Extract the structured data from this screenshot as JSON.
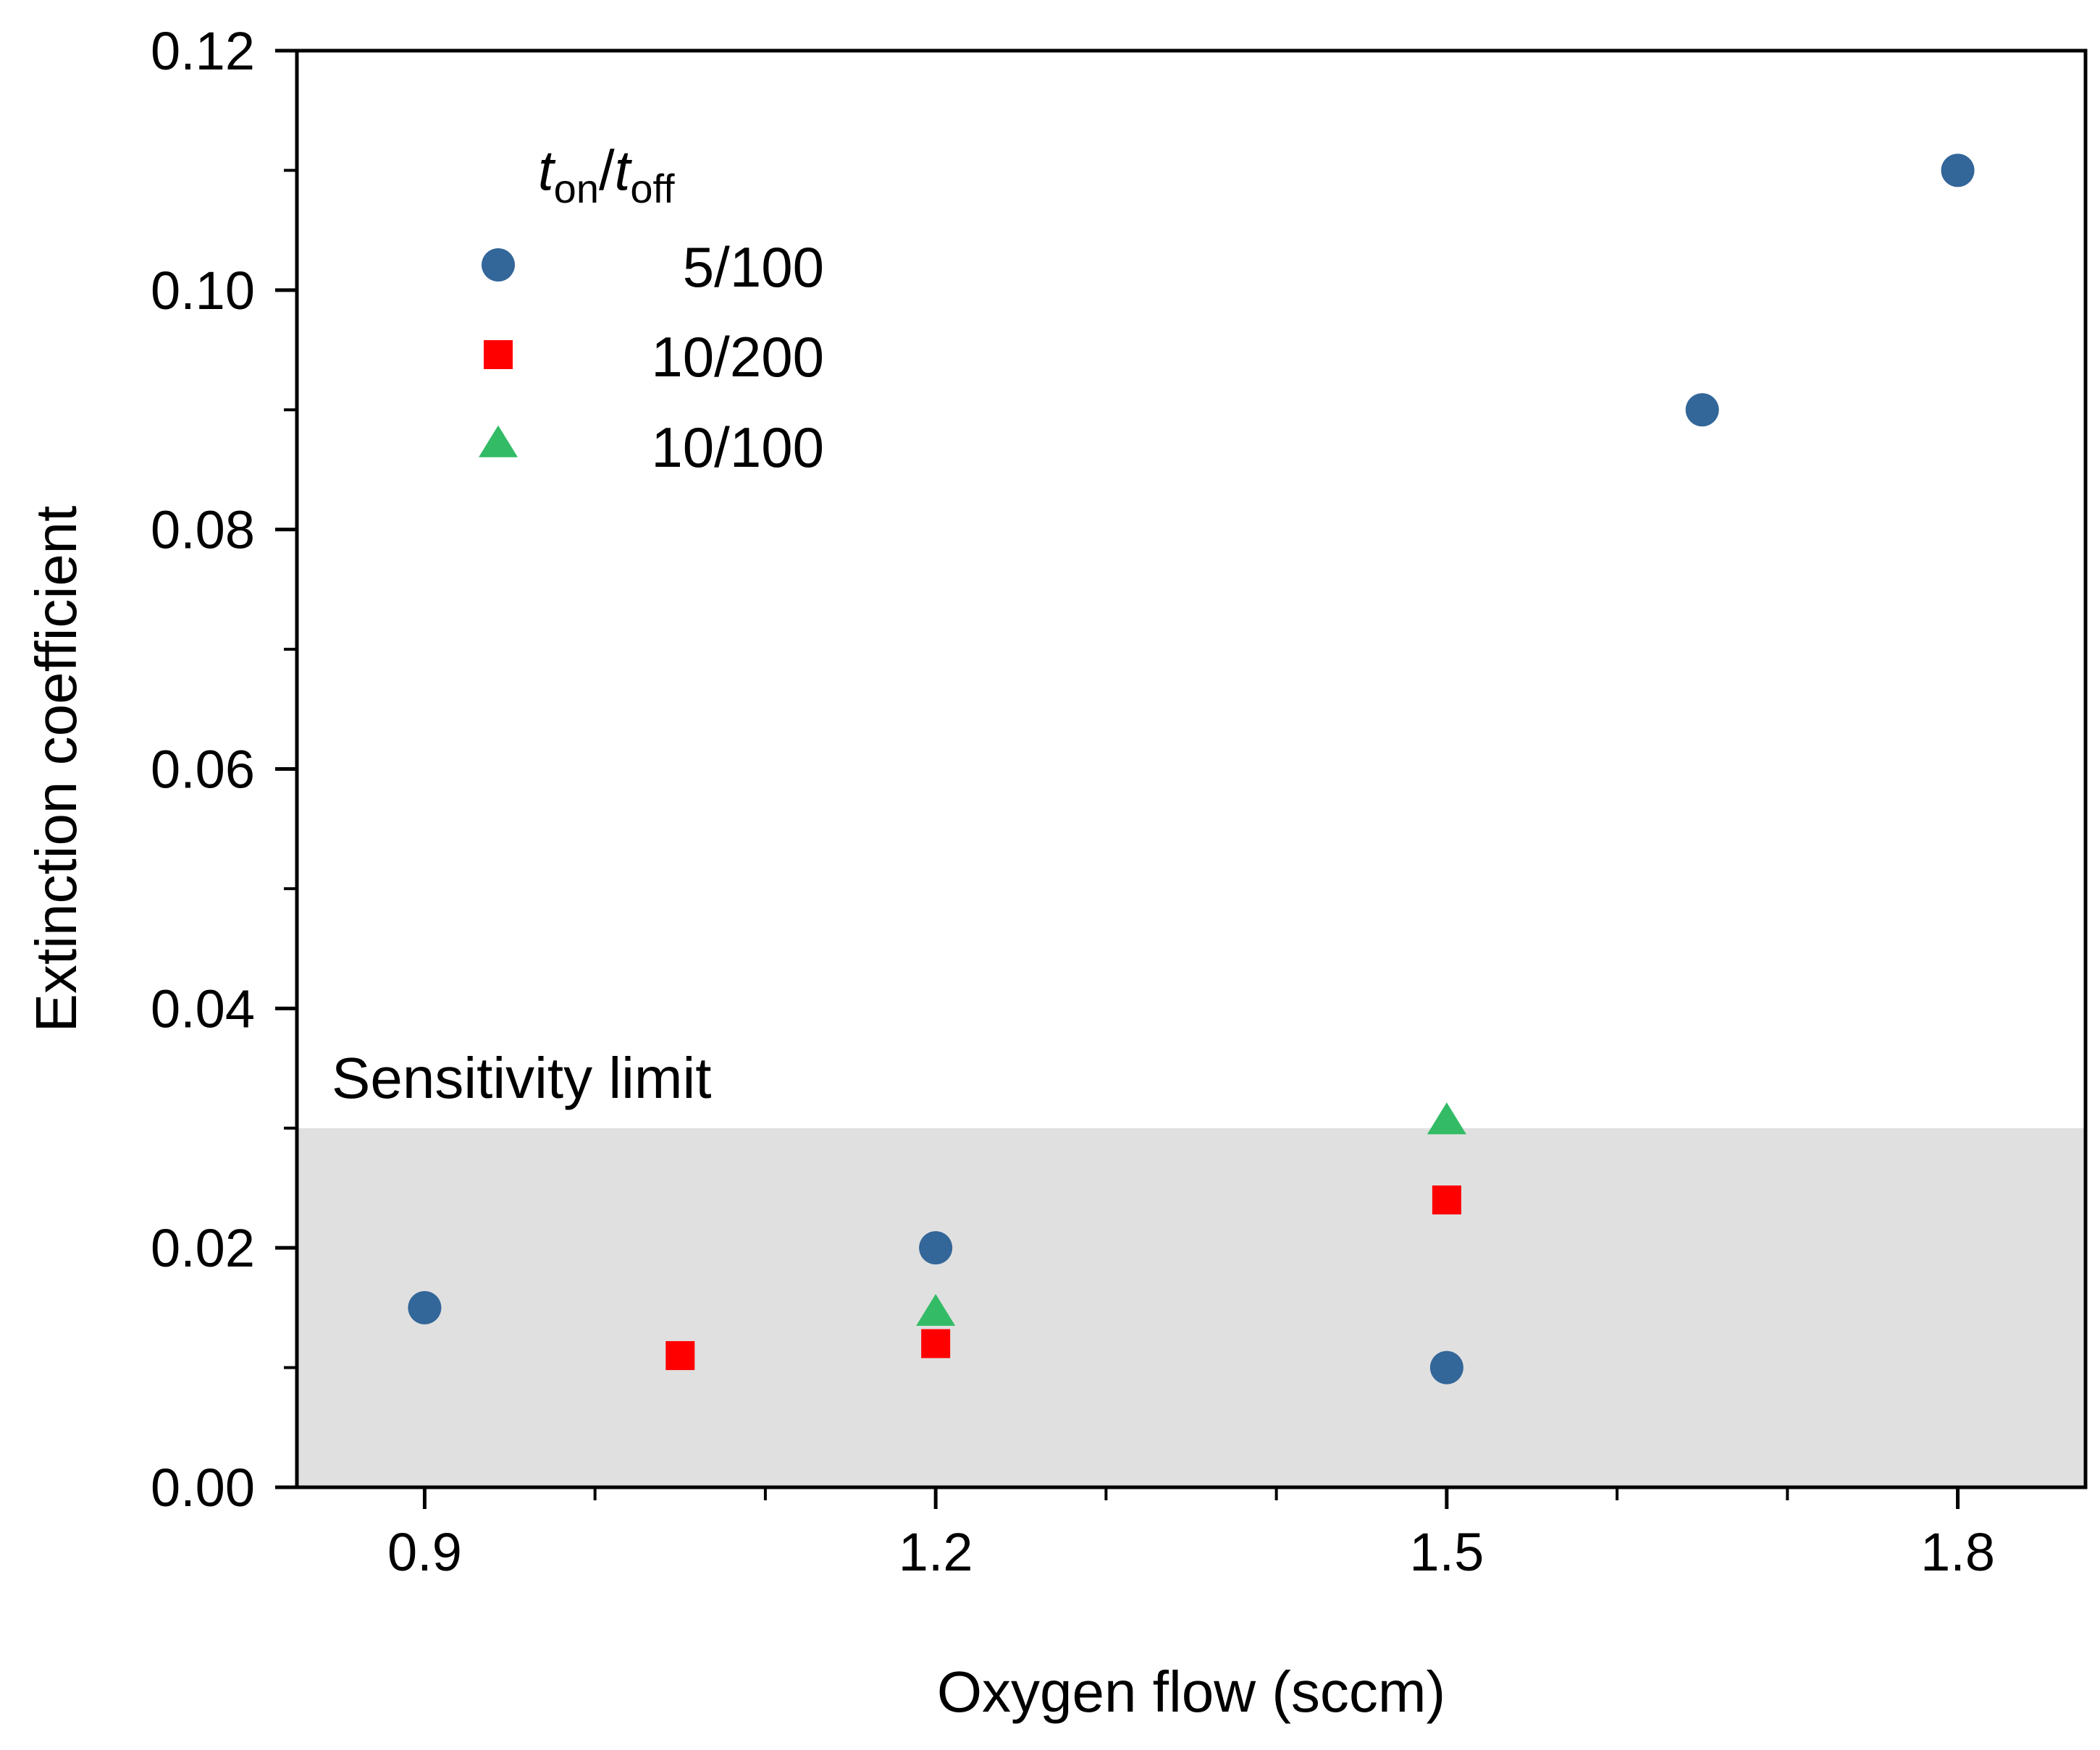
{
  "chart_data": {
    "type": "scatter",
    "title": "",
    "xlabel": "Oxygen flow (sccm)",
    "ylabel": "Extinction coefficient",
    "xlim": [
      0.825,
      1.875
    ],
    "ylim": [
      0.0,
      0.12
    ],
    "x_ticks": [
      0.9,
      1.2,
      1.5,
      1.8
    ],
    "x_tick_labels": [
      "0.9",
      "1.2",
      "1.5",
      "1.8"
    ],
    "x_minor_ticks": [
      1.0,
      1.1,
      1.3,
      1.4,
      1.6,
      1.7
    ],
    "y_ticks": [
      0.0,
      0.02,
      0.04,
      0.06,
      0.08,
      0.1,
      0.12
    ],
    "y_tick_labels": [
      "0.00",
      "0.02",
      "0.04",
      "0.06",
      "0.08",
      "0.10",
      "0.12"
    ],
    "y_minor_ticks": [
      0.01,
      0.03,
      0.05,
      0.07,
      0.09,
      0.11
    ],
    "grid": false,
    "legend": {
      "placement": "top-left",
      "title_parts": {
        "t1": "t",
        "sub1": "on",
        "slash": "/",
        "t2": "t",
        "sub2": "off"
      }
    },
    "shaded_region": {
      "y_from": 0.0,
      "y_to": 0.03,
      "color": "#e0e0e0",
      "label": "Sensitivity limit"
    },
    "series": [
      {
        "name": "5/100",
        "marker": "circle",
        "color": "#336699",
        "points": [
          [
            0.9,
            0.015
          ],
          [
            1.2,
            0.02
          ],
          [
            1.5,
            0.01
          ],
          [
            1.65,
            0.09
          ],
          [
            1.8,
            0.11
          ]
        ]
      },
      {
        "name": "10/200",
        "marker": "square",
        "color": "#ff0000",
        "points": [
          [
            1.05,
            0.011
          ],
          [
            1.2,
            0.012
          ],
          [
            1.5,
            0.024
          ]
        ]
      },
      {
        "name": "10/100",
        "marker": "triangle",
        "color": "#33bb66",
        "points": [
          [
            1.2,
            0.0145
          ],
          [
            1.5,
            0.0305
          ]
        ]
      }
    ]
  }
}
